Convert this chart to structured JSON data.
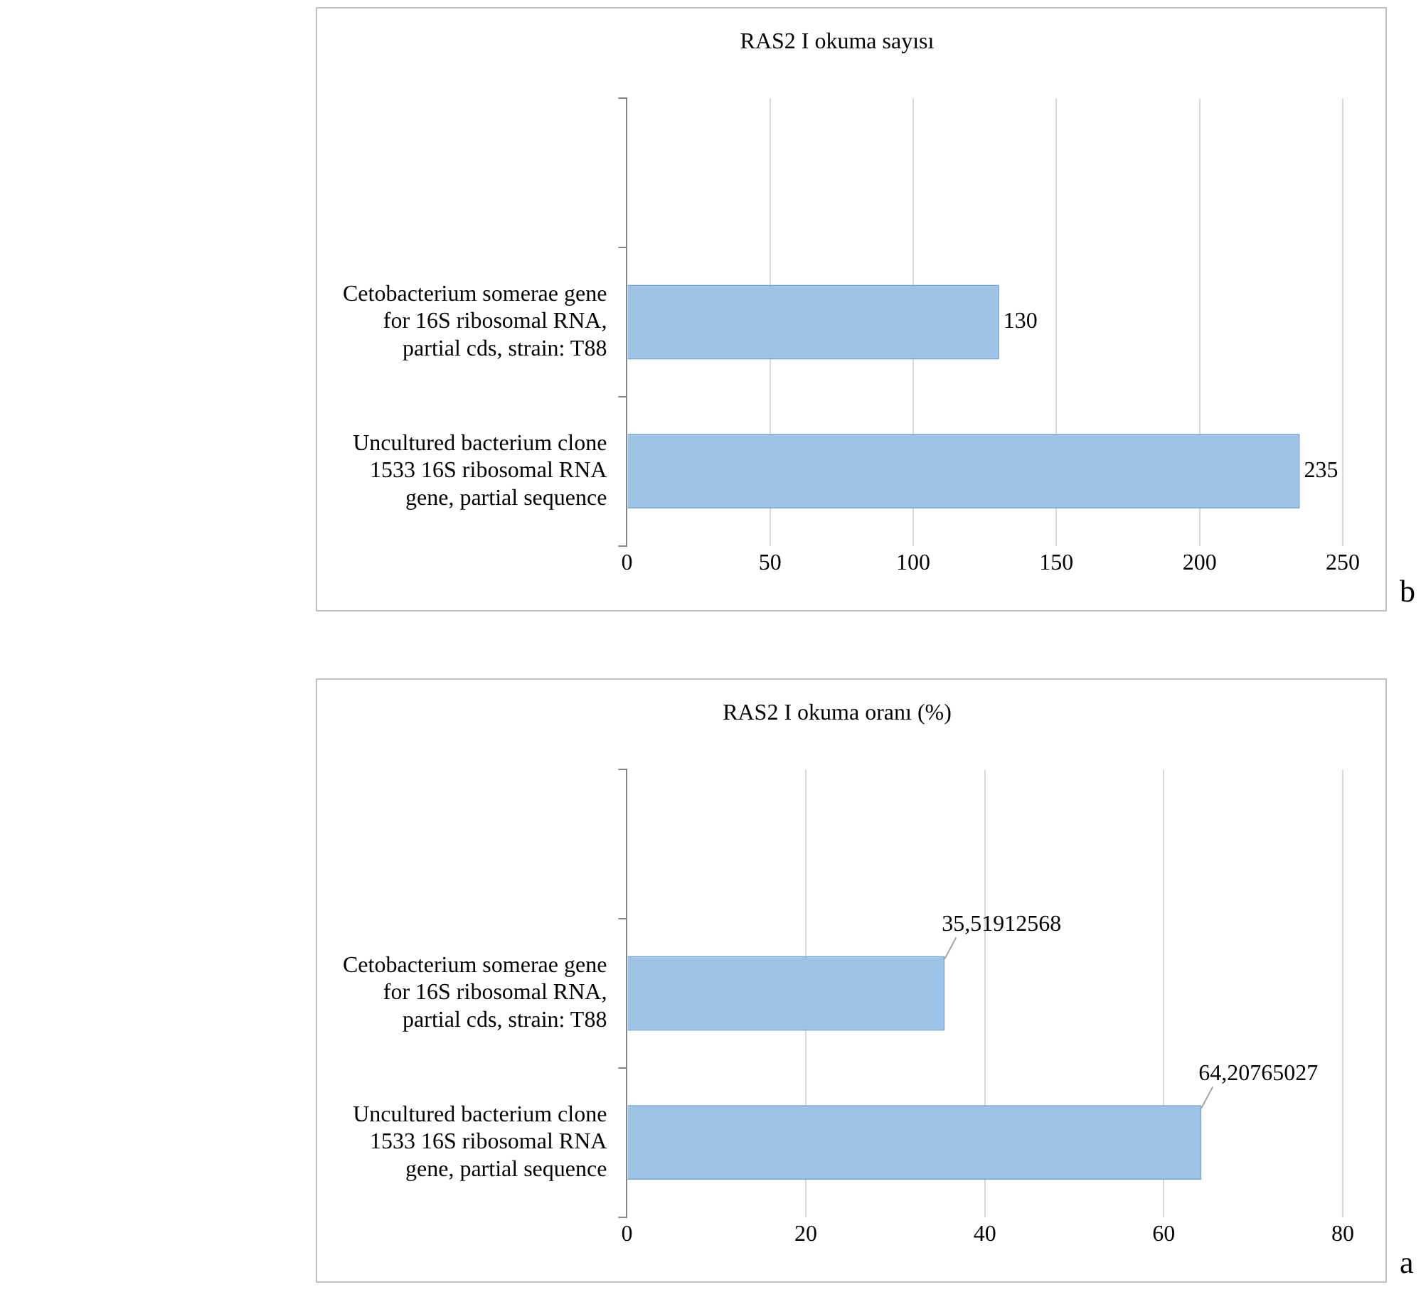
{
  "chart_data": [
    {
      "type": "bar",
      "orientation": "horizontal",
      "title": "RAS2 I okuma sayısı",
      "categories": [
        null,
        "Cetobacterium somerae gene for 16S ribosomal RNA, partial cds, strain: T88",
        "Uncultured bacterium clone 1533 16S ribosomal RNA gene, partial sequence"
      ],
      "values": [
        null,
        130,
        235
      ],
      "color": "#9dc3e6",
      "xlim": [
        0,
        250
      ],
      "xticks": [
        0,
        50,
        100,
        150,
        200,
        250
      ],
      "grid": "x",
      "data_labels": true,
      "annotations": [
        "b"
      ]
    },
    {
      "type": "bar",
      "orientation": "horizontal",
      "title": "RAS2 I okuma oranı (%)",
      "categories": [
        null,
        "Cetobacterium somerae gene for 16S ribosomal RNA, partial cds, strain: T88",
        "Uncultured bacterium clone 1533 16S ribosomal RNA gene, partial sequence"
      ],
      "values": [
        null,
        35.51912568,
        64.20765027
      ],
      "value_labels": [
        null,
        "35,51912568",
        "64,20765027"
      ],
      "color": "#9dc3e6",
      "xlim": [
        0,
        80
      ],
      "xticks": [
        0,
        20,
        40,
        60,
        80
      ],
      "grid": "x",
      "annotations": [
        "a"
      ]
    }
  ]
}
